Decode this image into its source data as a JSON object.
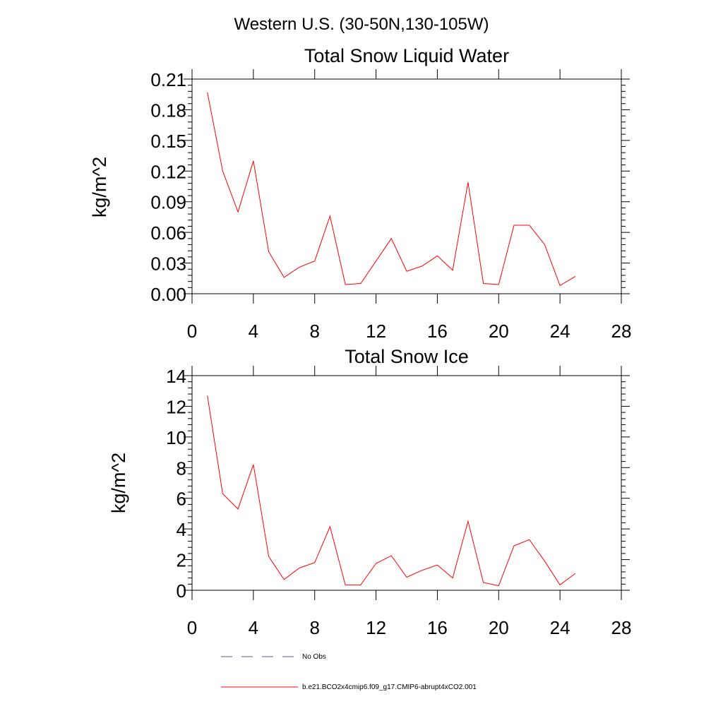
{
  "figure_title": "Western U.S. (30-50N,130-105W)",
  "legend": {
    "entries": [
      {
        "label": "No Obs",
        "color": "#5a5a8a",
        "style": "dashed"
      },
      {
        "label": "b.e21.BCO2x4cmip6.f09_g17.CMIP6-abrupt4xCO2.001",
        "color": "#ff0000",
        "style": "solid"
      }
    ]
  },
  "chart_data": [
    {
      "type": "line",
      "title": "Total Snow Liquid Water",
      "ylabel": "kg/m^2",
      "xlabel": "",
      "xlim": [
        0,
        28
      ],
      "ylim": [
        0,
        0.21
      ],
      "xticks": [
        0,
        4,
        8,
        12,
        16,
        20,
        24,
        28
      ],
      "yticks": [
        0,
        0.03,
        0.06,
        0.09,
        0.12,
        0.15,
        0.18,
        0.21
      ],
      "ytick_labels": [
        "0.00",
        "0.03",
        "0.06",
        "0.09",
        "0.12",
        "0.15",
        "0.18",
        "0.21"
      ],
      "x": [
        1,
        2,
        3,
        4,
        5,
        6,
        7,
        8,
        9,
        10,
        11,
        12,
        13,
        14,
        15,
        16,
        17,
        18,
        19,
        20,
        21,
        22,
        23,
        24,
        25
      ],
      "series": [
        {
          "name": "b.e21.BCO2x4cmip6.f09_g17.CMIP6-abrupt4xCO2.001",
          "color": "#ff0000",
          "values": [
            0.197,
            0.12,
            0.08,
            0.13,
            0.041,
            0.016,
            0.026,
            0.032,
            0.076,
            0.009,
            0.01,
            0.032,
            0.054,
            0.022,
            0.027,
            0.037,
            0.023,
            0.109,
            0.01,
            0.009,
            0.067,
            0.067,
            0.048,
            0.008,
            0.017
          ]
        }
      ]
    },
    {
      "type": "line",
      "title": "Total Snow Ice",
      "ylabel": "kg/m^2",
      "xlabel": "",
      "xlim": [
        0,
        28
      ],
      "ylim": [
        0,
        14
      ],
      "xticks": [
        0,
        4,
        8,
        12,
        16,
        20,
        24,
        28
      ],
      "yticks": [
        0,
        2,
        4,
        6,
        8,
        10,
        12,
        14
      ],
      "ytick_labels": [
        "0",
        "2",
        "4",
        "6",
        "8",
        "10",
        "12",
        "14"
      ],
      "x": [
        1,
        2,
        3,
        4,
        5,
        6,
        7,
        8,
        9,
        10,
        11,
        12,
        13,
        14,
        15,
        16,
        17,
        18,
        19,
        20,
        21,
        22,
        23,
        24,
        25
      ],
      "series": [
        {
          "name": "b.e21.BCO2x4cmip6.f09_g17.CMIP6-abrupt4xCO2.001",
          "color": "#ff0000",
          "values": [
            12.7,
            6.3,
            5.3,
            8.2,
            2.2,
            0.7,
            1.45,
            1.8,
            4.15,
            0.35,
            0.35,
            1.75,
            2.25,
            0.85,
            1.3,
            1.65,
            0.8,
            4.5,
            0.5,
            0.3,
            2.9,
            3.3,
            1.9,
            0.35,
            1.1
          ]
        }
      ]
    }
  ]
}
